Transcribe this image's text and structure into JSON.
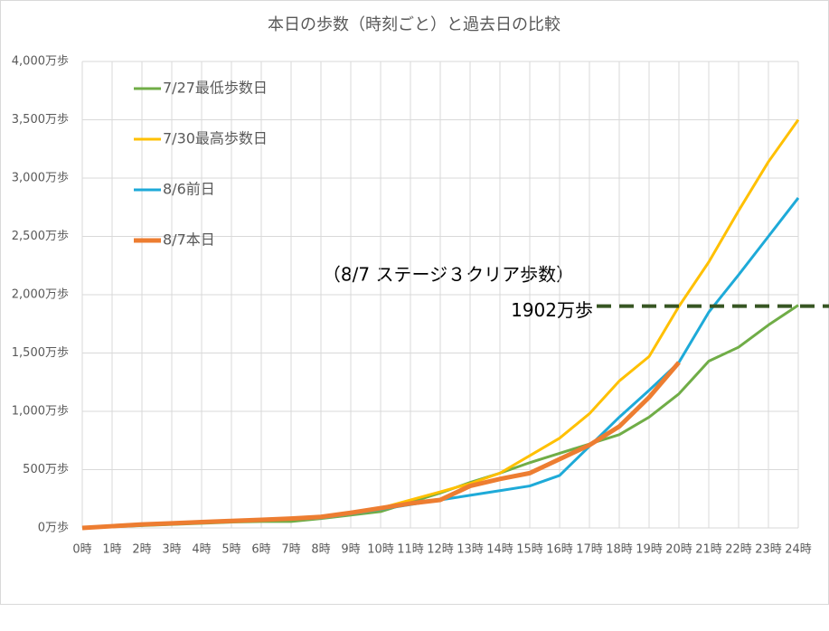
{
  "chart_data": {
    "type": "line",
    "title": "本日の歩数（時刻ごと）と過去日の比較",
    "categories": [
      "0時",
      "1時",
      "2時",
      "3時",
      "4時",
      "5時",
      "6時",
      "7時",
      "8時",
      "9時",
      "10時",
      "11時",
      "12時",
      "13時",
      "14時",
      "15時",
      "16時",
      "17時",
      "18時",
      "19時",
      "20時",
      "21時",
      "22時",
      "23時",
      "24時"
    ],
    "series": [
      {
        "name": "7/27最低歩数日",
        "color": "#70ad47",
        "width": 3,
        "values": [
          0,
          10,
          20,
          30,
          40,
          50,
          55,
          55,
          80,
          110,
          140,
          220,
          300,
          390,
          470,
          560,
          640,
          720,
          800,
          950,
          1150,
          1430,
          1550,
          1740,
          1910
        ]
      },
      {
        "name": "7/30最高歩数日",
        "color": "#ffc000",
        "width": 3,
        "values": [
          0,
          10,
          25,
          35,
          45,
          55,
          65,
          75,
          85,
          120,
          170,
          240,
          310,
          380,
          470,
          620,
          770,
          980,
          1260,
          1470,
          1900,
          2280,
          2720,
          3140,
          3500
        ]
      },
      {
        "name": "8/6前日",
        "color": "#1eaad8",
        "width": 3,
        "values": [
          0,
          15,
          25,
          35,
          45,
          55,
          65,
          75,
          85,
          120,
          160,
          200,
          240,
          280,
          320,
          360,
          450,
          700,
          950,
          1180,
          1420,
          1850,
          2170,
          2500,
          2830
        ]
      },
      {
        "name": "8/7本日",
        "color": "#ed7d31",
        "width": 5,
        "values": [
          0,
          15,
          30,
          40,
          50,
          60,
          70,
          80,
          95,
          130,
          170,
          210,
          240,
          360,
          420,
          470,
          590,
          710,
          870,
          1120,
          1420,
          null,
          null,
          null,
          null
        ]
      }
    ],
    "ylim": [
      0,
      4000
    ],
    "yticks": [
      {
        "value": 0,
        "label": "0万歩"
      },
      {
        "value": 500,
        "label": "500万歩"
      },
      {
        "value": 1000,
        "label": "1,000万歩"
      },
      {
        "value": 1500,
        "label": "1,500万歩"
      },
      {
        "value": 2000,
        "label": "2,000万歩"
      },
      {
        "value": 2500,
        "label": "2,500万歩"
      },
      {
        "value": 3000,
        "label": "3,000万歩"
      },
      {
        "value": 3500,
        "label": "3,500万歩"
      },
      {
        "value": 4000,
        "label": "4,000万歩"
      }
    ],
    "grid": true,
    "legend": "upper left",
    "annotation": "（8/7 ステージ３クリア歩数）",
    "reference": {
      "value": 1902,
      "label": "1902万歩",
      "color": "#375623"
    }
  }
}
